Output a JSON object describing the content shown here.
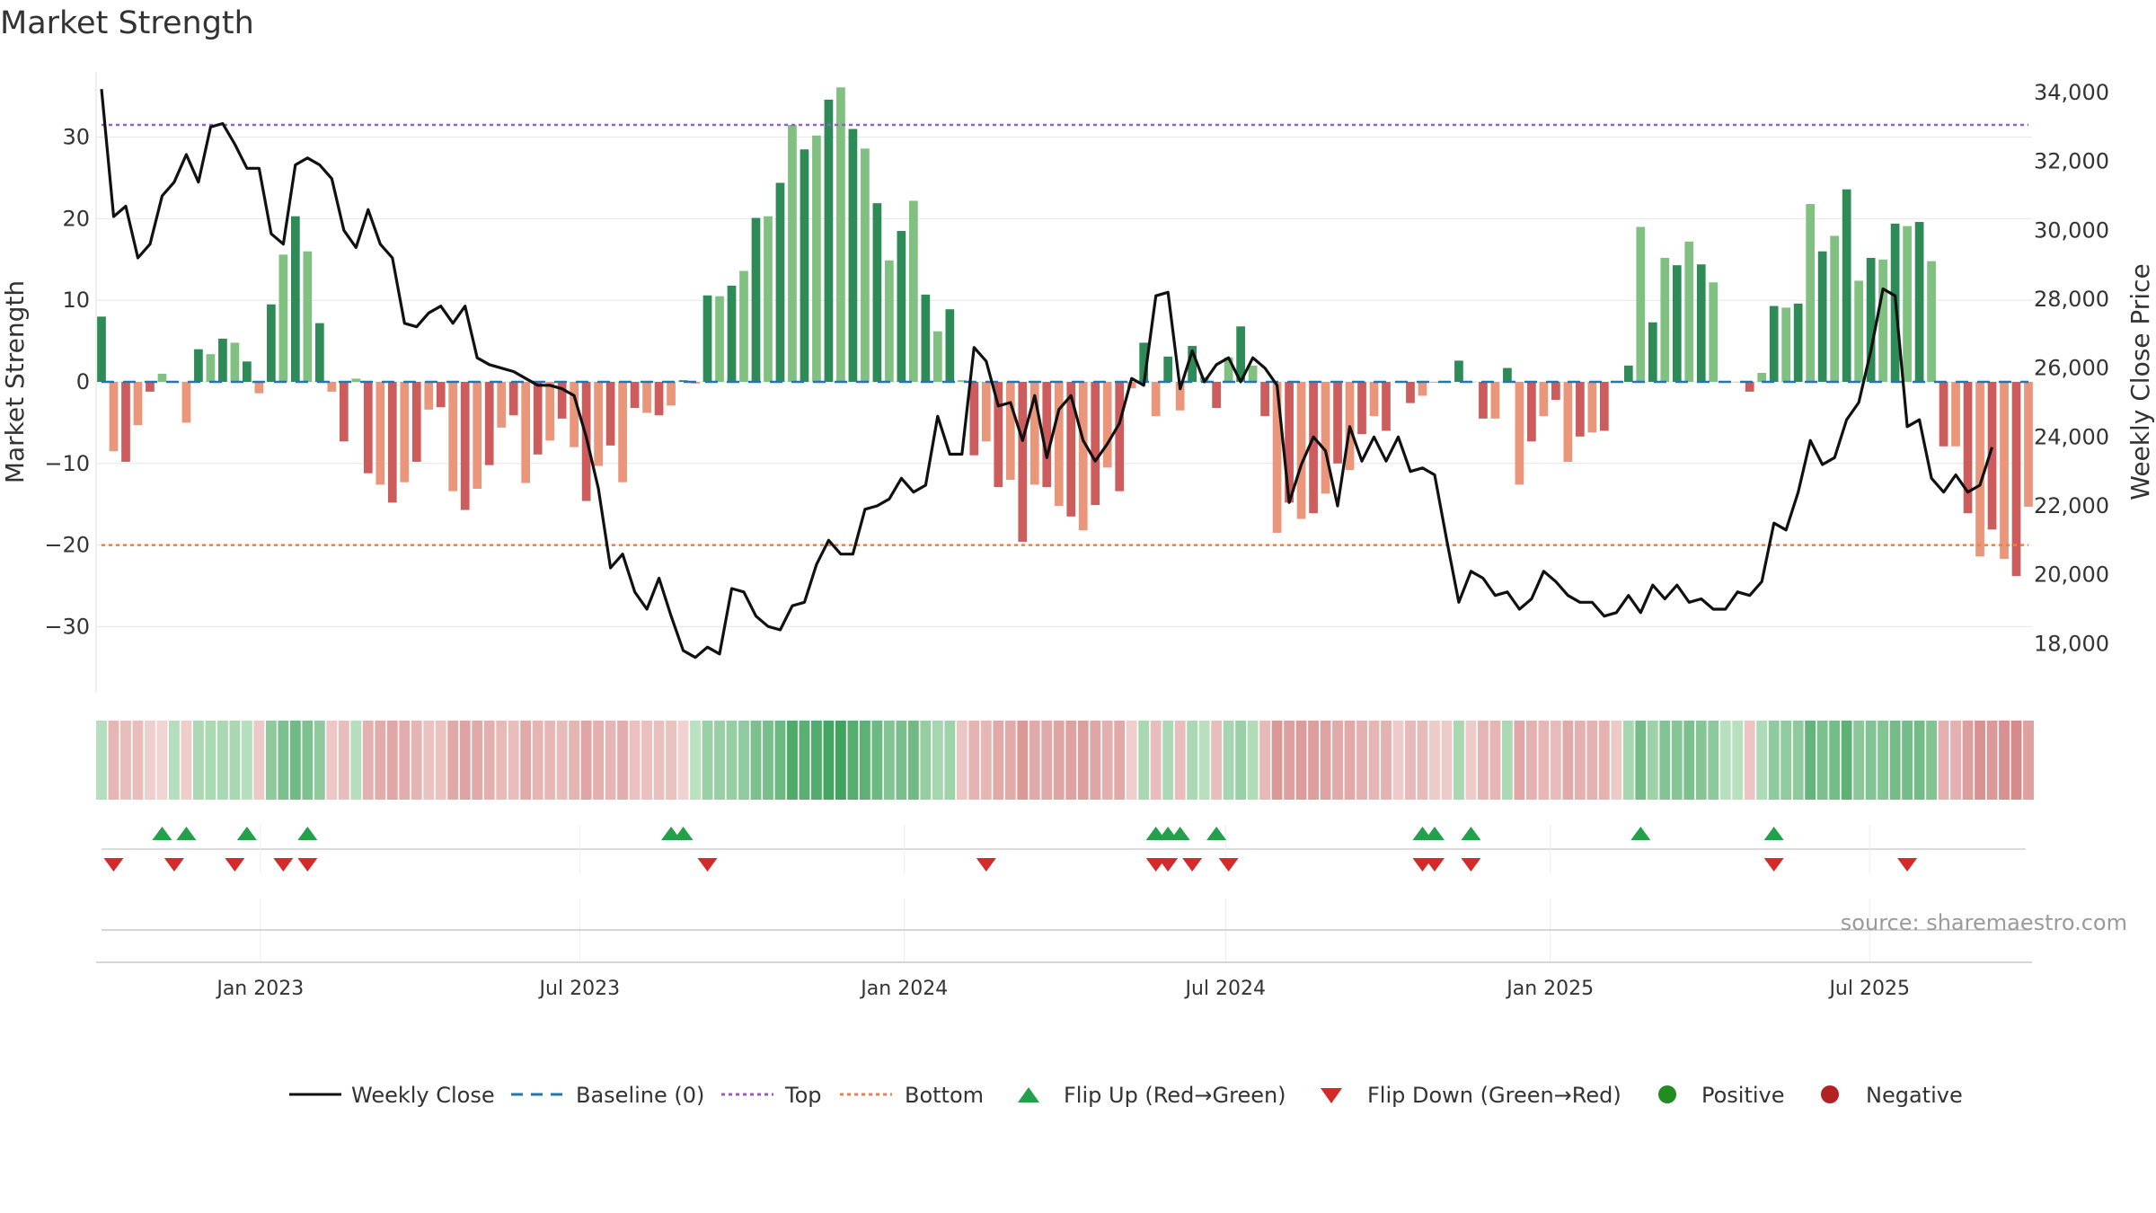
{
  "chart_data": {
    "type": "bar",
    "title": "Market Strength",
    "ylabel": "Market Strength",
    "y2label": "Weekly Close Price",
    "ylim": [
      -38,
      38
    ],
    "y2lim": [
      16600,
      34600
    ],
    "y_ticks": [
      30,
      20,
      10,
      0,
      -10,
      -20,
      -30
    ],
    "y_tick_labels": [
      "30",
      "20",
      "10",
      "0",
      "−10",
      "−20",
      "−30"
    ],
    "y2_ticks": [
      34000,
      32000,
      30000,
      28000,
      26000,
      24000,
      22000,
      20000,
      18000
    ],
    "y2_tick_labels": [
      "34,000",
      "32,000",
      "30,000",
      "28,000",
      "26,000",
      "24,000",
      "22,000",
      "20,000",
      "18,000"
    ],
    "x_start": "2022-10-03",
    "x_end": "2025-09-29",
    "x_ticks": [
      "2023-01-01",
      "2023-07-01",
      "2024-01-01",
      "2024-07-01",
      "2025-01-01",
      "2025-07-01"
    ],
    "x_tick_labels": [
      "Jan 2023",
      "Jul 2023",
      "Jan 2024",
      "Jul 2024",
      "Jan 2025",
      "Jul 2025"
    ],
    "top_line": 31.5,
    "bottom_line": -20,
    "grid": true,
    "legend_position": "bottom",
    "strength": [
      8,
      -8.5,
      -9.8,
      -5.3,
      -1.2,
      1,
      0,
      -5,
      4,
      3.4,
      5.3,
      4.8,
      2.5,
      -1.4,
      9.5,
      15.6,
      20.3,
      16,
      7.2,
      -1.2,
      -7.3,
      0.4,
      -11.2,
      -12.6,
      -14.8,
      -12.3,
      -9.8,
      -3.4,
      -3.1,
      -13.4,
      -15.7,
      -13.1,
      -10.2,
      -5.6,
      -4.1,
      -12.4,
      -8.9,
      -7.2,
      -4.5,
      -8,
      -14.6,
      -10.3,
      -7.8,
      -12.3,
      -3.2,
      -3.8,
      -4.1,
      -2.9,
      0.2,
      -0.2,
      10.6,
      10.5,
      11.8,
      13.6,
      20.1,
      20.3,
      24.4,
      31.5,
      28.5,
      30.2,
      34.6,
      36.1,
      31,
      28.6,
      21.9,
      14.9,
      18.5,
      22.2,
      10.7,
      6.2,
      8.9,
      0.2,
      -9,
      -7.3,
      -12.9,
      -12,
      -19.6,
      -12.6,
      -12.9,
      -15.2,
      -16.5,
      -18.2,
      -15.1,
      -10.5,
      -13.4,
      -0.8,
      4.8,
      -4.2,
      3.1,
      -3.5,
      4.4,
      0.6,
      -3.2,
      3,
      6.8,
      2,
      -4.2,
      -18.5,
      -14.8,
      -16.8,
      -16.1,
      -13.7,
      -10,
      -10.8,
      -6.4,
      -4.2,
      -6,
      0,
      -2.6,
      -1.7,
      0,
      0,
      2.6,
      0,
      -4.5,
      -4.5,
      1.7,
      -12.6,
      -7.3,
      -4.2,
      -2.2,
      -9.8,
      -6.7,
      -6.2,
      -6,
      -0.1,
      2,
      19,
      7.3,
      15.2,
      14.3,
      17.2,
      14.4,
      12.2,
      0,
      0,
      -1.2,
      1.1,
      9.3,
      9.1,
      9.6,
      21.8,
      16,
      17.9,
      23.6,
      12.4,
      15.2,
      15,
      19.4,
      19.1,
      19.6,
      14.8,
      -7.9,
      -7.9,
      -16.1,
      -21.4,
      -18.1,
      -21.7,
      -23.8,
      -15.3
    ],
    "weekly_close": [
      34100,
      30400,
      30700,
      29200,
      29600,
      31000,
      31400,
      32200,
      31400,
      33000,
      33100,
      32500,
      31800,
      31800,
      29900,
      29600,
      31900,
      32100,
      31900,
      31500,
      30000,
      29500,
      30600,
      29600,
      29200,
      27300,
      27200,
      27600,
      27800,
      27300,
      27800,
      26300,
      26100,
      26000,
      25900,
      25700,
      25500,
      25500,
      25400,
      25200,
      24000,
      22500,
      20200,
      20600,
      19500,
      19000,
      19900,
      18800,
      17800,
      17600,
      17900,
      17700,
      19600,
      19500,
      18800,
      18500,
      18400,
      19100,
      19200,
      20300,
      21000,
      20600,
      20600,
      21900,
      22000,
      22200,
      22800,
      22400,
      22600,
      24600,
      23500,
      23500,
      26600,
      26200,
      24900,
      25000,
      23900,
      25200,
      23400,
      24800,
      25200,
      23900,
      23300,
      23800,
      24400,
      25700,
      25500,
      28100,
      28200,
      25400,
      26500,
      25600,
      26100,
      26300,
      25600,
      26300,
      26000,
      25500,
      22100,
      23200,
      24000,
      23600,
      22000,
      24300,
      23300,
      24000,
      23300,
      24000,
      23000,
      23100,
      22900,
      21000,
      19200,
      20100,
      19900,
      19400,
      19500,
      19000,
      19300,
      20100,
      19800,
      19400,
      19200,
      19200,
      18800,
      18900,
      19400,
      18900,
      19700,
      19300,
      19700,
      19200,
      19300,
      19000,
      19000,
      19500,
      19400,
      19800,
      21500,
      21300,
      22400,
      23900,
      23200,
      23400,
      24500,
      25000,
      26500,
      28300,
      28100,
      24300,
      24500,
      22800,
      22400,
      22900,
      22400,
      22600,
      23700
    ],
    "cell_strength": [
      5.5,
      -9.2,
      -7.7,
      -7.9,
      -3.5,
      -2.4,
      5.5,
      -4.1,
      7.4,
      7.4,
      7.9,
      8.2,
      5.6,
      -5.3,
      13.4,
      17.3,
      19.5,
      17.1,
      13.3,
      -5.5,
      -7.6,
      5.5,
      -10.8,
      -11.8,
      -13,
      -11.7,
      -9.8,
      -6.6,
      -6.5,
      -12.8,
      -14.1,
      -12.4,
      -11,
      -8.6,
      -7.9,
      -12.4,
      -10,
      -9.4,
      -8.2,
      -9.8,
      -13.3,
      -10.9,
      -9.5,
      -11.6,
      -6.8,
      -7.1,
      -7.2,
      -7,
      -2.7,
      4.5,
      11.2,
      11.3,
      12,
      13.1,
      17.2,
      17.6,
      20.5,
      26,
      23.9,
      25.3,
      28,
      28.9,
      25,
      23.4,
      20,
      15.9,
      17.7,
      19.5,
      11.7,
      8.7,
      10.2,
      -5.6,
      -10.2,
      -9.4,
      -12.7,
      -12.2,
      -16.7,
      -12.5,
      -12.6,
      -13.6,
      -14.2,
      -15,
      -13.4,
      -10.9,
      -12.4,
      -3.5,
      7.8,
      -7.8,
      7.6,
      -7.9,
      8,
      4.9,
      -7.7,
      8.5,
      11.1,
      6.5,
      -8.7,
      -16.6,
      -14.7,
      -15.8,
      -15.3,
      -14.2,
      -12.3,
      -12.6,
      -10.6,
      -9.6,
      -10.4,
      -4.6,
      -8.7,
      -8.3,
      -4.6,
      -4.6,
      8.2,
      -4.6,
      -9.6,
      -9.6,
      7.5,
      -13.1,
      -10.6,
      -9.3,
      -8,
      -12.3,
      -10.7,
      -10.4,
      -10.3,
      -4.8,
      8.3,
      18.5,
      10.4,
      15.8,
      15.1,
      17.2,
      15.3,
      13.7,
      4.9,
      4.8,
      -6.1,
      6.8,
      13.3,
      13.1,
      13.5,
      21.8,
      17.3,
      18.6,
      22.9,
      14.2,
      16,
      15.9,
      18.9,
      18.6,
      19,
      15.7,
      -10.6,
      -10.6,
      -15.1,
      -18.1,
      -16.2,
      -18.3,
      -19.7,
      -14.6
    ],
    "flip_up_dates": [
      "2022-11-07",
      "2022-11-21",
      "2022-12-26",
      "2023-01-30",
      "2023-08-28",
      "2023-09-04",
      "2024-06-03",
      "2024-06-10",
      "2024-06-17",
      "2024-07-08",
      "2024-11-04",
      "2024-11-11",
      "2024-12-02",
      "2025-03-10",
      "2025-05-26"
    ],
    "flip_down_dates": [
      "2022-10-10",
      "2022-11-14",
      "2022-12-19",
      "2023-01-16",
      "2023-01-30",
      "2023-09-18",
      "2024-02-26",
      "2024-06-03",
      "2024-06-10",
      "2024-06-24",
      "2024-07-15",
      "2024-11-04",
      "2024-11-11",
      "2024-12-02",
      "2025-05-26",
      "2025-08-11"
    ],
    "legend": [
      "Weekly Close",
      "Baseline (0)",
      "Top",
      "Bottom",
      "Flip Up (Red→Green)",
      "Flip Down (Green→Red)",
      "Positive",
      "Negative"
    ],
    "source": "source: sharemaestro.com"
  },
  "colors": {
    "pos_strong": "#2e8b57",
    "pos_light": "#80c080",
    "neg_strong": "#cd5c5c",
    "neg_light": "#e9967a",
    "line": "#111111",
    "baseline": "#1f77b4",
    "top": "#9b59d0",
    "bottom": "#f08040",
    "flip_up": "#22a04a",
    "flip_down": "#d42a2a",
    "legend_positive": "#228b22",
    "legend_negative": "#b22222"
  }
}
